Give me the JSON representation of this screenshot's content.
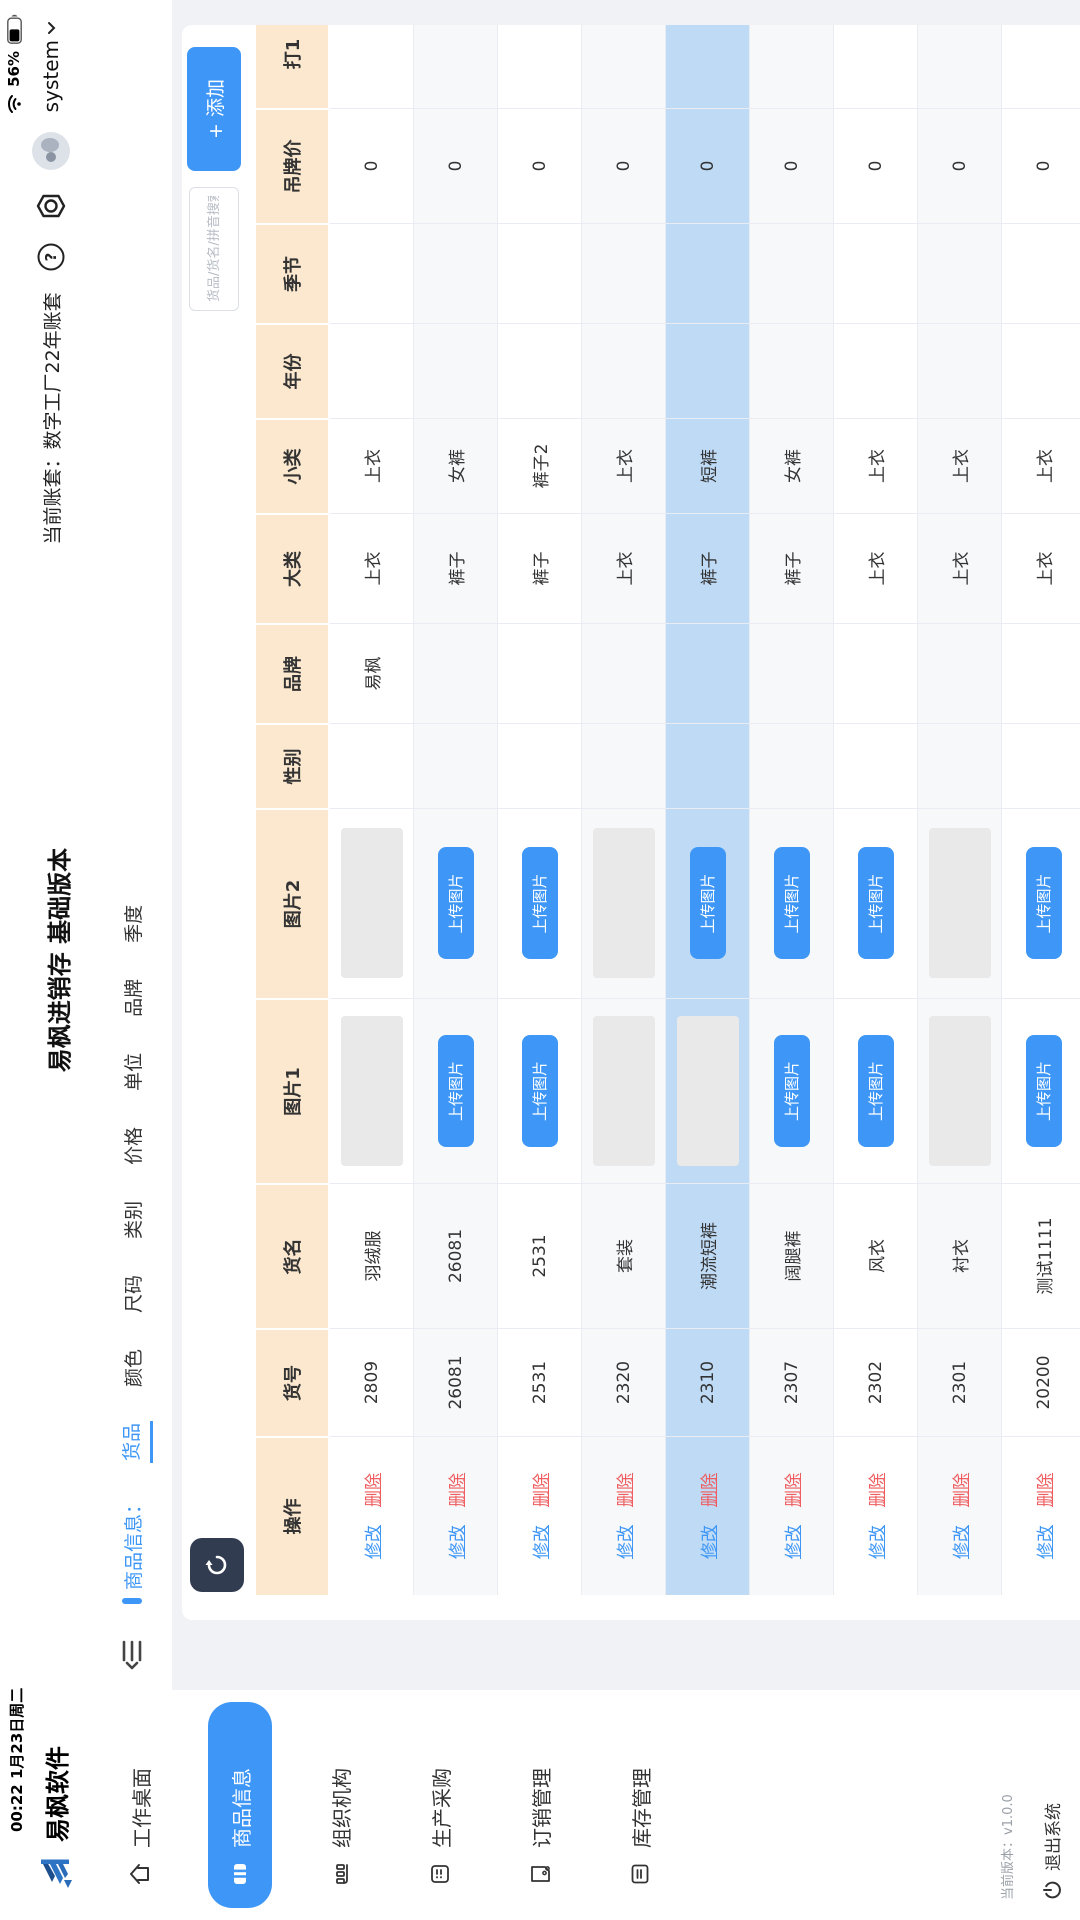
{
  "status_bar": {
    "time_text": "00:22  1月23日周二",
    "battery_text": "56%"
  },
  "header": {
    "app_name": "易枫软件",
    "title": "易枫进销存 基础版本",
    "account": "当前账套：数字工厂22年账套",
    "user_menu": "system"
  },
  "tab_bar": {
    "group_label": "商品信息：",
    "tabs": [
      "货品",
      "颜色",
      "尺码",
      "类别",
      "价格",
      "单位",
      "品牌",
      "季度"
    ],
    "active_tab": "货品"
  },
  "sidebar": {
    "items": [
      {
        "label": "工作桌面",
        "icon": "home-icon",
        "active": false
      },
      {
        "label": "商品信息",
        "icon": "goods-icon",
        "active": true
      },
      {
        "label": "组织机构",
        "icon": "org-icon",
        "active": false
      },
      {
        "label": "生产采购",
        "icon": "purchase-icon",
        "active": false
      },
      {
        "label": "订销管理",
        "icon": "order-icon",
        "active": false
      },
      {
        "label": "库存管理",
        "icon": "inventory-icon",
        "active": false
      }
    ],
    "version": "当前版本：v1.0.0",
    "exit": "退出系统"
  },
  "toolbar": {
    "search_placeholder": "货品/货名/拼音搜索",
    "add_button": "+ 添加"
  },
  "table": {
    "columns": [
      "操作",
      "货号",
      "货名",
      "图片1",
      "图片2",
      "性别",
      "品牌",
      "大类",
      "小类",
      "年份",
      "季节",
      "吊牌价",
      "打1"
    ],
    "op_edit": "修改",
    "op_delete": "删除",
    "upload_label": "上传图片",
    "selected_row_index": 4,
    "rows": [
      {
        "id": "2809",
        "name": "羽绒服",
        "img1": "placeholder",
        "img2": "placeholder",
        "gender": "",
        "brand": "易枫",
        "cat1": "上衣",
        "cat2": "上衣",
        "year": "",
        "season": "",
        "price": "0",
        "extra": ""
      },
      {
        "id": "26081",
        "name": "26081",
        "img1": "upload",
        "img2": "upload",
        "gender": "",
        "brand": "",
        "cat1": "裤子",
        "cat2": "女裤",
        "year": "",
        "season": "",
        "price": "0",
        "extra": ""
      },
      {
        "id": "2531",
        "name": "2531",
        "img1": "upload",
        "img2": "upload",
        "gender": "",
        "brand": "",
        "cat1": "裤子",
        "cat2": "裤子2",
        "year": "",
        "season": "",
        "price": "0",
        "extra": ""
      },
      {
        "id": "2320",
        "name": "套装",
        "img1": "placeholder",
        "img2": "placeholder",
        "gender": "",
        "brand": "",
        "cat1": "上衣",
        "cat2": "上衣",
        "year": "",
        "season": "",
        "price": "0",
        "extra": ""
      },
      {
        "id": "2310",
        "name": "潮流短裤",
        "img1": "placeholder",
        "img2": "upload",
        "gender": "",
        "brand": "",
        "cat1": "裤子",
        "cat2": "短裤",
        "year": "",
        "season": "",
        "price": "0",
        "extra": ""
      },
      {
        "id": "2307",
        "name": "阔腿裤",
        "img1": "upload",
        "img2": "upload",
        "gender": "",
        "brand": "",
        "cat1": "裤子",
        "cat2": "女裤",
        "year": "",
        "season": "",
        "price": "0",
        "extra": ""
      },
      {
        "id": "2302",
        "name": "风衣",
        "img1": "upload",
        "img2": "upload",
        "gender": "",
        "brand": "",
        "cat1": "上衣",
        "cat2": "上衣",
        "year": "",
        "season": "",
        "price": "0",
        "extra": ""
      },
      {
        "id": "2301",
        "name": "衬衣",
        "img1": "placeholder",
        "img2": "placeholder",
        "gender": "",
        "brand": "",
        "cat1": "上衣",
        "cat2": "上衣",
        "year": "",
        "season": "",
        "price": "0",
        "extra": ""
      },
      {
        "id": "20200",
        "name": "测试1111",
        "img1": "upload",
        "img2": "upload",
        "gender": "",
        "brand": "",
        "cat1": "上衣",
        "cat2": "上衣",
        "year": "",
        "season": "",
        "price": "0",
        "extra": ""
      }
    ]
  },
  "colors": {
    "primary": "#3e97f6",
    "danger": "#ef5d60",
    "header_bg": "#fbe8cf",
    "selected_row": "#bedaf5",
    "stripe": "#f7f8fa",
    "page_bg": "#f0f2f5",
    "refresh_bg": "#323c50"
  }
}
